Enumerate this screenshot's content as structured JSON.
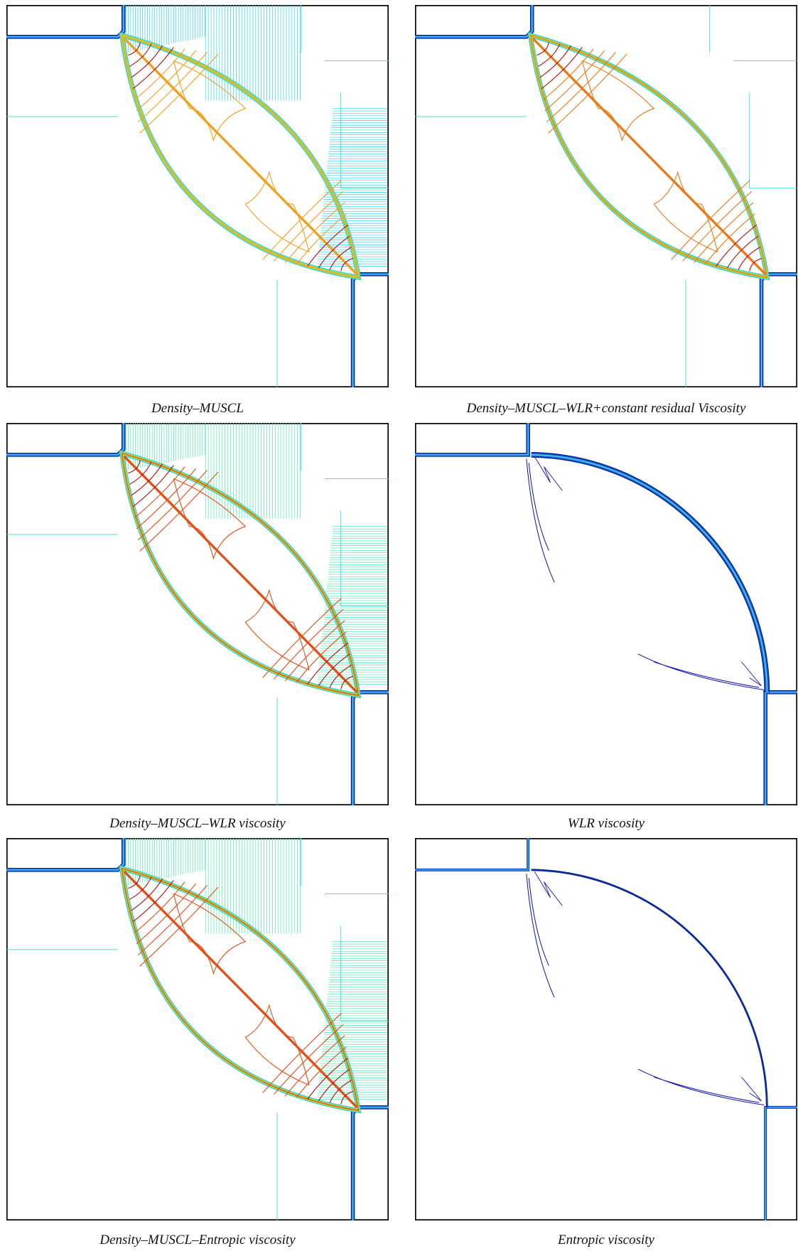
{
  "figure": {
    "panels": [
      {
        "caption": "Density–MUSCL"
      },
      {
        "caption": "Density–MUSCL–WLR+constant residual Viscosity"
      },
      {
        "caption": "Density–MUSCL–WLR viscosity"
      },
      {
        "caption": "WLR viscosity"
      },
      {
        "caption": "Density–MUSCL–Entropic viscosity"
      },
      {
        "caption": "Entropic viscosity"
      }
    ]
  }
}
